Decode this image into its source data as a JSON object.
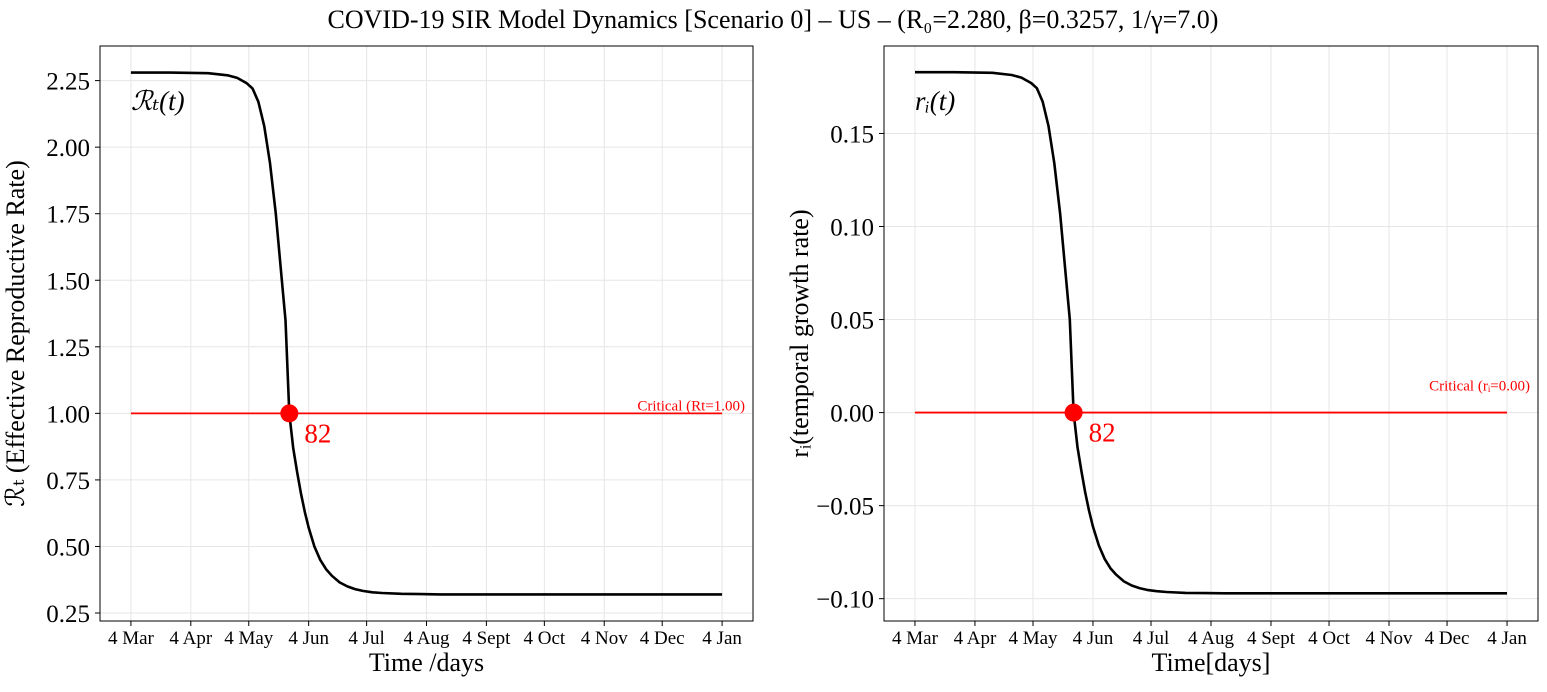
{
  "figure": {
    "title": "COVID-19 SIR Model Dynamics [Scenario 0] – US – (R₀=2.280, β=0.3257, 1/γ=7.0)",
    "colors": {
      "curve": "#000000",
      "critical_line": "#ff0000",
      "marker": "#ff0000",
      "grid": "#e6e6e6"
    }
  },
  "chart_data": [
    {
      "type": "line",
      "curve_label": "ℛₜ(t)",
      "xlabel": "Time /days",
      "ylabel": "ℛₜ (Effective Reproductive Rate)",
      "x_tick_labels": [
        "4 Mar",
        "4 Apr",
        "4 May",
        "4 Jun",
        "4 Jul",
        "4 Aug",
        "4 Sept",
        "4 Oct",
        "4 Nov",
        "4 Dec",
        "4 Jan"
      ],
      "x_tick_days": [
        0,
        31,
        61,
        92,
        122,
        153,
        184,
        214,
        245,
        275,
        306
      ],
      "xlim": [
        -16,
        322
      ],
      "y_tick_labels": [
        "0.25",
        "0.50",
        "0.75",
        "1.00",
        "1.25",
        "1.50",
        "1.75",
        "2.00",
        "2.25"
      ],
      "y_tick_values": [
        0.25,
        0.5,
        0.75,
        1.0,
        1.25,
        1.5,
        1.75,
        2.0,
        2.25
      ],
      "ylim": [
        0.22,
        2.38
      ],
      "grid": true,
      "series": [
        {
          "x": [
            0,
            20,
            40,
            50,
            55,
            60,
            63,
            66,
            69,
            72,
            75,
            78,
            80,
            82,
            84,
            86,
            88,
            90,
            92,
            95,
            98,
            101,
            104,
            108,
            112,
            116,
            120,
            125,
            130,
            140,
            150,
            160,
            170,
            200,
            250,
            300,
            306
          ],
          "y": [
            2.28,
            2.28,
            2.278,
            2.27,
            2.26,
            2.24,
            2.22,
            2.17,
            2.08,
            1.94,
            1.75,
            1.51,
            1.35,
            1.0,
            0.87,
            0.78,
            0.7,
            0.63,
            0.57,
            0.5,
            0.45,
            0.415,
            0.39,
            0.365,
            0.35,
            0.34,
            0.333,
            0.328,
            0.325,
            0.322,
            0.321,
            0.32,
            0.32,
            0.32,
            0.32,
            0.32,
            0.32
          ]
        }
      ],
      "critical": {
        "value": 1.0,
        "label": "Critical (Rt=1.00)"
      },
      "crossing": {
        "day": 82,
        "value": 1.0,
        "label": "82"
      }
    },
    {
      "type": "line",
      "curve_label": "rᵢ(t)",
      "xlabel": "Time[days]",
      "ylabel": "rᵢ(temporal growth rate)",
      "x_tick_labels": [
        "4 Mar",
        "4 Apr",
        "4 May",
        "4 Jun",
        "4 Jul",
        "4 Aug",
        "4 Sept",
        "4 Oct",
        "4 Nov",
        "4 Dec",
        "4 Jan"
      ],
      "x_tick_days": [
        0,
        31,
        61,
        92,
        122,
        153,
        184,
        214,
        245,
        275,
        306
      ],
      "xlim": [
        -16,
        322
      ],
      "y_tick_labels": [
        "−0.10",
        "−0.05",
        "0.00",
        "0.05",
        "0.10",
        "0.15"
      ],
      "y_tick_values": [
        -0.1,
        -0.05,
        0.0,
        0.05,
        0.1,
        0.15
      ],
      "ylim": [
        -0.112,
        0.197
      ],
      "grid": true,
      "series": [
        {
          "x": [
            0,
            20,
            40,
            50,
            55,
            60,
            63,
            66,
            69,
            72,
            75,
            78,
            80,
            82,
            84,
            86,
            88,
            90,
            92,
            95,
            98,
            101,
            104,
            108,
            112,
            116,
            120,
            125,
            130,
            140,
            150,
            160,
            170,
            200,
            250,
            300,
            306
          ],
          "y": [
            0.1829,
            0.1829,
            0.1826,
            0.1814,
            0.18,
            0.1771,
            0.1743,
            0.167,
            0.154,
            0.134,
            0.1071,
            0.0729,
            0.05,
            0.0,
            -0.0186,
            -0.0314,
            -0.0429,
            -0.0529,
            -0.0614,
            -0.0714,
            -0.0786,
            -0.0836,
            -0.0871,
            -0.0907,
            -0.0929,
            -0.0943,
            -0.0953,
            -0.096,
            -0.0964,
            -0.0969,
            -0.097,
            -0.0971,
            -0.0971,
            -0.0971,
            -0.0971,
            -0.0971,
            -0.0971
          ]
        }
      ],
      "critical": {
        "value": 0.0,
        "label": "Critical (rᵢ=0.00)"
      },
      "crossing": {
        "day": 82,
        "value": 0.0,
        "label": "82"
      }
    }
  ]
}
